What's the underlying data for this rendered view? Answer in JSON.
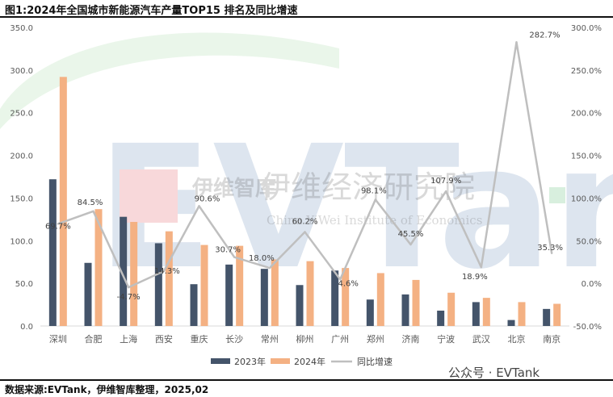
{
  "title": "图1:2024年全国城市新能源汽车产量TOP15 排名及同比增速",
  "source": "数据来源:EVTank，伊维智库整理，2025,02",
  "watermark": {
    "cn": "伊维经济研究院",
    "cn_small": "伊维智库",
    "en": "China YiWei Institute of Economics",
    "logo": "EVTank"
  },
  "wechat": "公众号 · EVTank",
  "colors": {
    "bar2023": "#44546A",
    "bar2024": "#F4B183",
    "line": "#BFBFBF"
  },
  "chart_data": {
    "type": "bar",
    "categories": [
      "深圳",
      "合肥",
      "上海",
      "西安",
      "重庆",
      "长沙",
      "常州",
      "柳州",
      "广州",
      "郑州",
      "济南",
      "宁波",
      "武汉",
      "北京",
      "南京"
    ],
    "series": [
      {
        "name": "2023年",
        "values": [
          172,
          74,
          128,
          97,
          49,
          72,
          67,
          48,
          65,
          31,
          37,
          18,
          28,
          7,
          20
        ]
      },
      {
        "name": "2024年",
        "values": [
          292,
          137,
          122,
          111,
          95,
          94,
          78,
          76,
          68,
          62,
          54,
          39,
          33,
          28,
          26
        ]
      }
    ],
    "line": {
      "name": "同比增速",
      "values": [
        69.7,
        84.5,
        -4.7,
        14.3,
        90.6,
        30.7,
        18.0,
        60.2,
        4.6,
        98.1,
        45.5,
        107.9,
        18.9,
        282.7,
        35.3
      ],
      "labels": [
        "69.7%",
        "84.5%",
        "-4.7%",
        "14.3%",
        "90.6%",
        "30.7%",
        "18.0%",
        "60.2%",
        "4.6%",
        "98.1%",
        "45.5%",
        "107.9%",
        "18.9%",
        "282.7%",
        "35.3%"
      ]
    },
    "ylim_left": [
      0,
      350
    ],
    "yticks_left": [
      "0.0",
      "50.0",
      "100.0",
      "150.0",
      "200.0",
      "250.0",
      "300.0",
      "350.0"
    ],
    "ylim_right": [
      -50,
      300
    ],
    "yticks_right": [
      "-50.0%",
      "0.0%",
      "50.0%",
      "100.0%",
      "150.0%",
      "200.0%",
      "250.0%",
      "300.0%"
    ],
    "legend": [
      "2023年",
      "2024年",
      "同比增速"
    ],
    "legend_position": "bottom",
    "grid": false
  }
}
